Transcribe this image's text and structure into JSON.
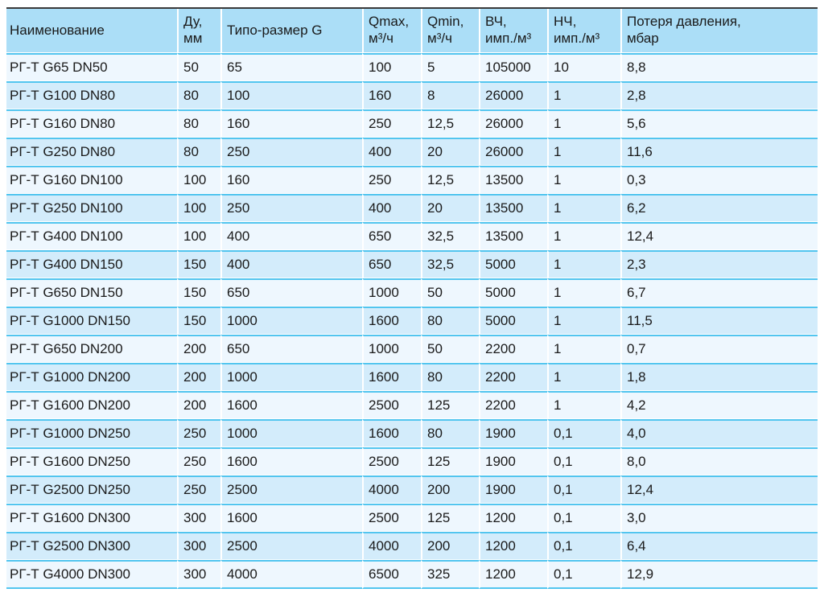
{
  "table": {
    "columns": [
      {
        "id": "name",
        "label": "Наименование"
      },
      {
        "id": "du",
        "label": "Ду,\nмм"
      },
      {
        "id": "g-size",
        "label": "Типо-размер G"
      },
      {
        "id": "qmax",
        "label": "Qmax,\nм³/ч"
      },
      {
        "id": "qmin",
        "label": "Qmin,\nм³/ч"
      },
      {
        "id": "hf",
        "label": "ВЧ,\nимп./м³"
      },
      {
        "id": "lf",
        "label": "НЧ,\nимп./м³"
      },
      {
        "id": "pressure-loss",
        "label": "Потеря давления,\nмбар"
      }
    ],
    "rows": [
      [
        "РГ-Т G65 DN50",
        "50",
        "65",
        "100",
        "5",
        "105000",
        "10",
        "8,8"
      ],
      [
        "РГ-Т G100 DN80",
        "80",
        "100",
        "160",
        "8",
        "26000",
        "1",
        "2,8"
      ],
      [
        "РГ-Т G160 DN80",
        "80",
        "160",
        "250",
        "12,5",
        "26000",
        "1",
        "5,6"
      ],
      [
        "РГ-Т G250 DN80",
        "80",
        "250",
        "400",
        "20",
        "26000",
        "1",
        "11,6"
      ],
      [
        "РГ-Т G160 DN100",
        "100",
        "160",
        "250",
        "12,5",
        "13500",
        "1",
        "0,3"
      ],
      [
        "РГ-Т G250 DN100",
        "100",
        "250",
        "400",
        "20",
        "13500",
        "1",
        "6,2"
      ],
      [
        "РГ-Т G400 DN100",
        "100",
        "400",
        "650",
        "32,5",
        "13500",
        "1",
        "12,4"
      ],
      [
        "РГ-Т G400 DN150",
        "150",
        "400",
        "650",
        "32,5",
        "5000",
        "1",
        "2,3"
      ],
      [
        "РГ-Т G650 DN150",
        "150",
        "650",
        "1000",
        "50",
        "5000",
        "1",
        "6,7"
      ],
      [
        "РГ-Т G1000 DN150",
        "150",
        "1000",
        "1600",
        "80",
        "5000",
        "1",
        "11,5"
      ],
      [
        "РГ-Т G650 DN200",
        "200",
        "650",
        "1000",
        "50",
        "2200",
        "1",
        "0,7"
      ],
      [
        "РГ-Т G1000 DN200",
        "200",
        "1000",
        "1600",
        "80",
        "2200",
        "1",
        "1,8"
      ],
      [
        "РГ-Т G1600 DN200",
        "200",
        "1600",
        "2500",
        "125",
        "2200",
        "1",
        "4,2"
      ],
      [
        "РГ-Т G1000 DN250",
        "250",
        "1000",
        "1600",
        "80",
        "1900",
        "0,1",
        "4,0"
      ],
      [
        "РГ-Т G1600 DN250",
        "250",
        "1600",
        "2500",
        "125",
        "1900",
        "0,1",
        "8,0"
      ],
      [
        "РГ-Т G2500 DN250",
        "250",
        "2500",
        "4000",
        "200",
        "1900",
        "0,1",
        "12,4"
      ],
      [
        "РГ-Т G1600 DN300",
        "300",
        "1600",
        "2500",
        "125",
        "1200",
        "0,1",
        "3,0"
      ],
      [
        "РГ-Т G2500 DN300",
        "300",
        "2500",
        "4000",
        "200",
        "1200",
        "0,1",
        "6,4"
      ],
      [
        "РГ-Т G4000 DN300",
        "300",
        "4000",
        "6500",
        "325",
        "1200",
        "0,1",
        "12,9"
      ]
    ]
  },
  "colors": {
    "page_bg": "#ffffff",
    "header_bg": "#abdef7",
    "row_odd_bg": "#eef7fe",
    "row_even_bg": "#d3ecfb",
    "separator": "#52c5ef",
    "col_divider": "#ffffff",
    "table_top_border": "#3a3a3a",
    "text": "#1a1a1a"
  }
}
